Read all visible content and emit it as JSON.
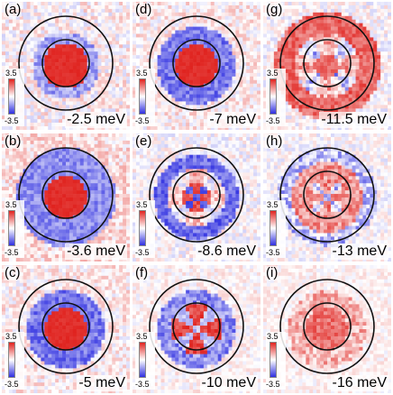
{
  "colorbar": {
    "max_label": "3.5",
    "min_label": "-3.5",
    "max_color": "#e0231f",
    "mid_color": "#ffffff",
    "min_color": "#2f2fe0"
  },
  "panels": [
    {
      "label": "(a)",
      "energy": "-2.5 meV",
      "pattern": "disk"
    },
    {
      "label": "(d)",
      "energy": "-7 meV",
      "pattern": "disk-ring"
    },
    {
      "label": "(g)",
      "energy": "-11.5 meV",
      "pattern": "outer-ring"
    },
    {
      "label": "(b)",
      "energy": "-3.6 meV",
      "pattern": "disk-ring-wide"
    },
    {
      "label": "(e)",
      "energy": "-8.6 meV",
      "pattern": "cross"
    },
    {
      "label": "(h)",
      "energy": "-13 meV",
      "pattern": "ring-star"
    },
    {
      "label": "(c)",
      "energy": "-5 meV",
      "pattern": "disk-ring"
    },
    {
      "label": "(f)",
      "energy": "-10 meV",
      "pattern": "star"
    },
    {
      "label": "(i)",
      "energy": "-16 meV",
      "pattern": "fuzzy"
    }
  ]
}
